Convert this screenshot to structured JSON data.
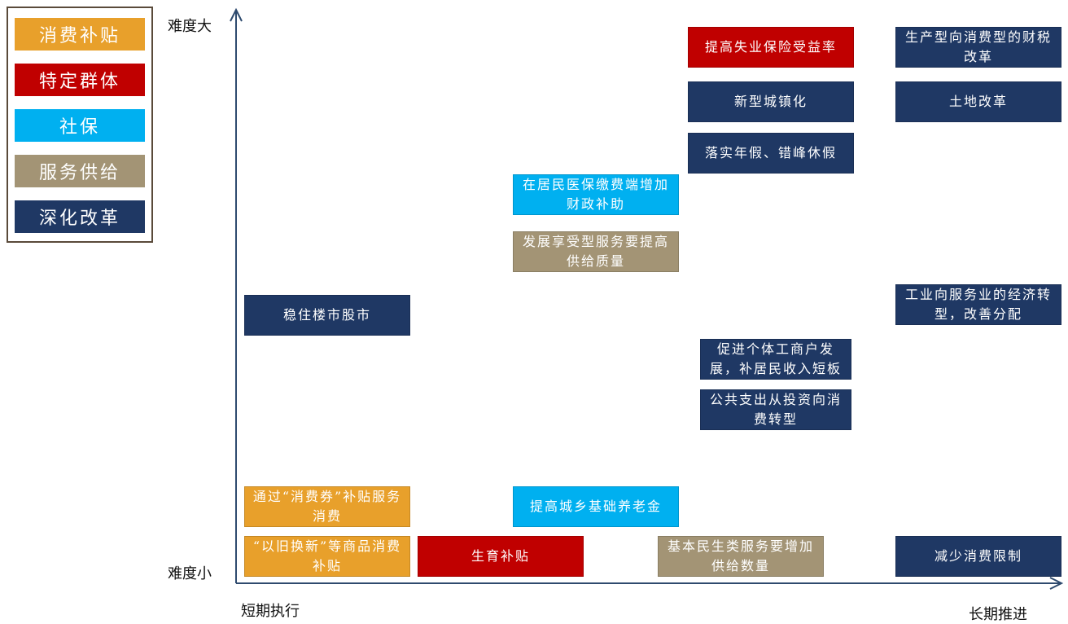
{
  "colors": {
    "consumption_subsidy": "#e8a02b",
    "specific_groups": "#c00000",
    "social_security": "#00b0f0",
    "service_supply": "#a39475",
    "deepen_reform": "#1f3864",
    "axis": "#2e4a6e"
  },
  "legend": {
    "items": [
      {
        "label": "消费补贴",
        "category": "consumption_subsidy"
      },
      {
        "label": "特定群体",
        "category": "specific_groups"
      },
      {
        "label": "社保",
        "category": "social_security"
      },
      {
        "label": "服务供给",
        "category": "service_supply"
      },
      {
        "label": "深化改革",
        "category": "deepen_reform"
      }
    ]
  },
  "axes": {
    "y_top_label": "难度大",
    "y_bottom_label": "难度小",
    "x_left_label": "短期执行",
    "x_right_label": "长期推进"
  },
  "boxes": [
    {
      "text": "提高失业保险受益率",
      "category": "specific_groups"
    },
    {
      "text": "生产型向消费型的财税改革",
      "category": "deepen_reform"
    },
    {
      "text": "新型城镇化",
      "category": "deepen_reform"
    },
    {
      "text": "土地改革",
      "category": "deepen_reform"
    },
    {
      "text": "落实年假、错峰休假",
      "category": "deepen_reform"
    },
    {
      "text": "在居民医保缴费端增加财政补助",
      "category": "social_security"
    },
    {
      "text": "发展享受型服务要提高供给质量",
      "category": "service_supply"
    },
    {
      "text": "稳住楼市股市",
      "category": "deepen_reform"
    },
    {
      "text": "工业向服务业的经济转型，改善分配",
      "category": "deepen_reform"
    },
    {
      "text": "促进个体工商户发展，补居民收入短板",
      "category": "deepen_reform"
    },
    {
      "text": "公共支出从投资向消费转型",
      "category": "deepen_reform"
    },
    {
      "text": "通过“消费券”补贴服务消费",
      "category": "consumption_subsidy"
    },
    {
      "text": "提高城乡基础养老金",
      "category": "social_security"
    },
    {
      "text": "“以旧换新”等商品消费补贴",
      "category": "consumption_subsidy"
    },
    {
      "text": "生育补贴",
      "category": "specific_groups"
    },
    {
      "text": "基本民生类服务要增加供给数量",
      "category": "service_supply"
    },
    {
      "text": "减少消费限制",
      "category": "deepen_reform"
    }
  ]
}
